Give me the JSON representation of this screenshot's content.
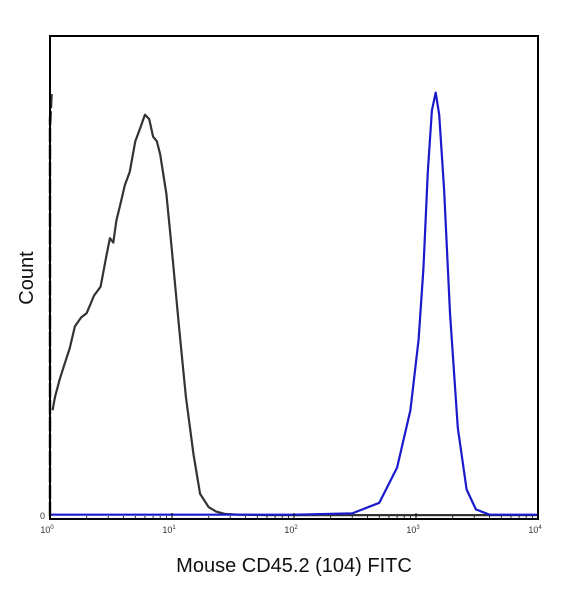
{
  "chart_data": {
    "type": "line",
    "title": "",
    "xlabel": "Mouse CD45.2 (104) FITC",
    "ylabel": "Count",
    "x_scale": "log",
    "xlim": [
      1,
      10000
    ],
    "ylim": [
      0,
      1
    ],
    "x_ticks": [
      {
        "base": "10",
        "exp": "0",
        "value": 1
      },
      {
        "base": "10",
        "exp": "1",
        "value": 10
      },
      {
        "base": "10",
        "exp": "2",
        "value": 100
      },
      {
        "base": "10",
        "exp": "3",
        "value": 1000
      },
      {
        "base": "10",
        "exp": "4",
        "value": 10000
      }
    ],
    "y_ticks": [
      {
        "label": "0",
        "value": 0
      }
    ],
    "grid": false,
    "legend": "none",
    "series": [
      {
        "color": "#333333",
        "style": "solid",
        "x": [
          1.05,
          1.1,
          1.2,
          1.3,
          1.45,
          1.6,
          1.8,
          2.0,
          2.3,
          2.6,
          2.9,
          3.1,
          3.3,
          3.5,
          3.8,
          4.1,
          4.5,
          5.0,
          5.5,
          6.0,
          6.5,
          7.0,
          7.5,
          8.0,
          9.0,
          10.0,
          11.5,
          13.0,
          15.0,
          17.0,
          20.0,
          23.0,
          27.0,
          35.0,
          60.0,
          150.0,
          1000.0,
          10000.0
        ],
        "y": [
          0.24,
          0.27,
          0.31,
          0.34,
          0.38,
          0.43,
          0.45,
          0.46,
          0.5,
          0.52,
          0.59,
          0.63,
          0.62,
          0.67,
          0.71,
          0.75,
          0.78,
          0.85,
          0.88,
          0.91,
          0.9,
          0.86,
          0.85,
          0.82,
          0.73,
          0.6,
          0.42,
          0.27,
          0.14,
          0.05,
          0.02,
          0.01,
          0.005,
          0.003,
          0.002,
          0.002,
          0.002,
          0.002
        ]
      },
      {
        "color": "#1a1acc",
        "style": "solid",
        "x": [
          1.0,
          10.0,
          100.0,
          300.0,
          500.0,
          700.0,
          900.0,
          1050.0,
          1150.0,
          1250.0,
          1350.0,
          1450.0,
          1550.0,
          1700.0,
          1900.0,
          2200.0,
          2600.0,
          3100.0,
          4000.0,
          10000.0
        ],
        "y": [
          0.003,
          0.003,
          0.003,
          0.006,
          0.03,
          0.11,
          0.24,
          0.4,
          0.56,
          0.78,
          0.92,
          0.96,
          0.91,
          0.74,
          0.46,
          0.2,
          0.06,
          0.015,
          0.003,
          0.003
        ]
      },
      {
        "color": "#333333",
        "style": "dashed",
        "x": [
          1.0,
          1.0,
          1.0,
          1.03,
          1.0,
          1.0
        ],
        "y": [
          0.0,
          0.5,
          0.9,
          0.96,
          0.88,
          0.0
        ]
      }
    ]
  }
}
